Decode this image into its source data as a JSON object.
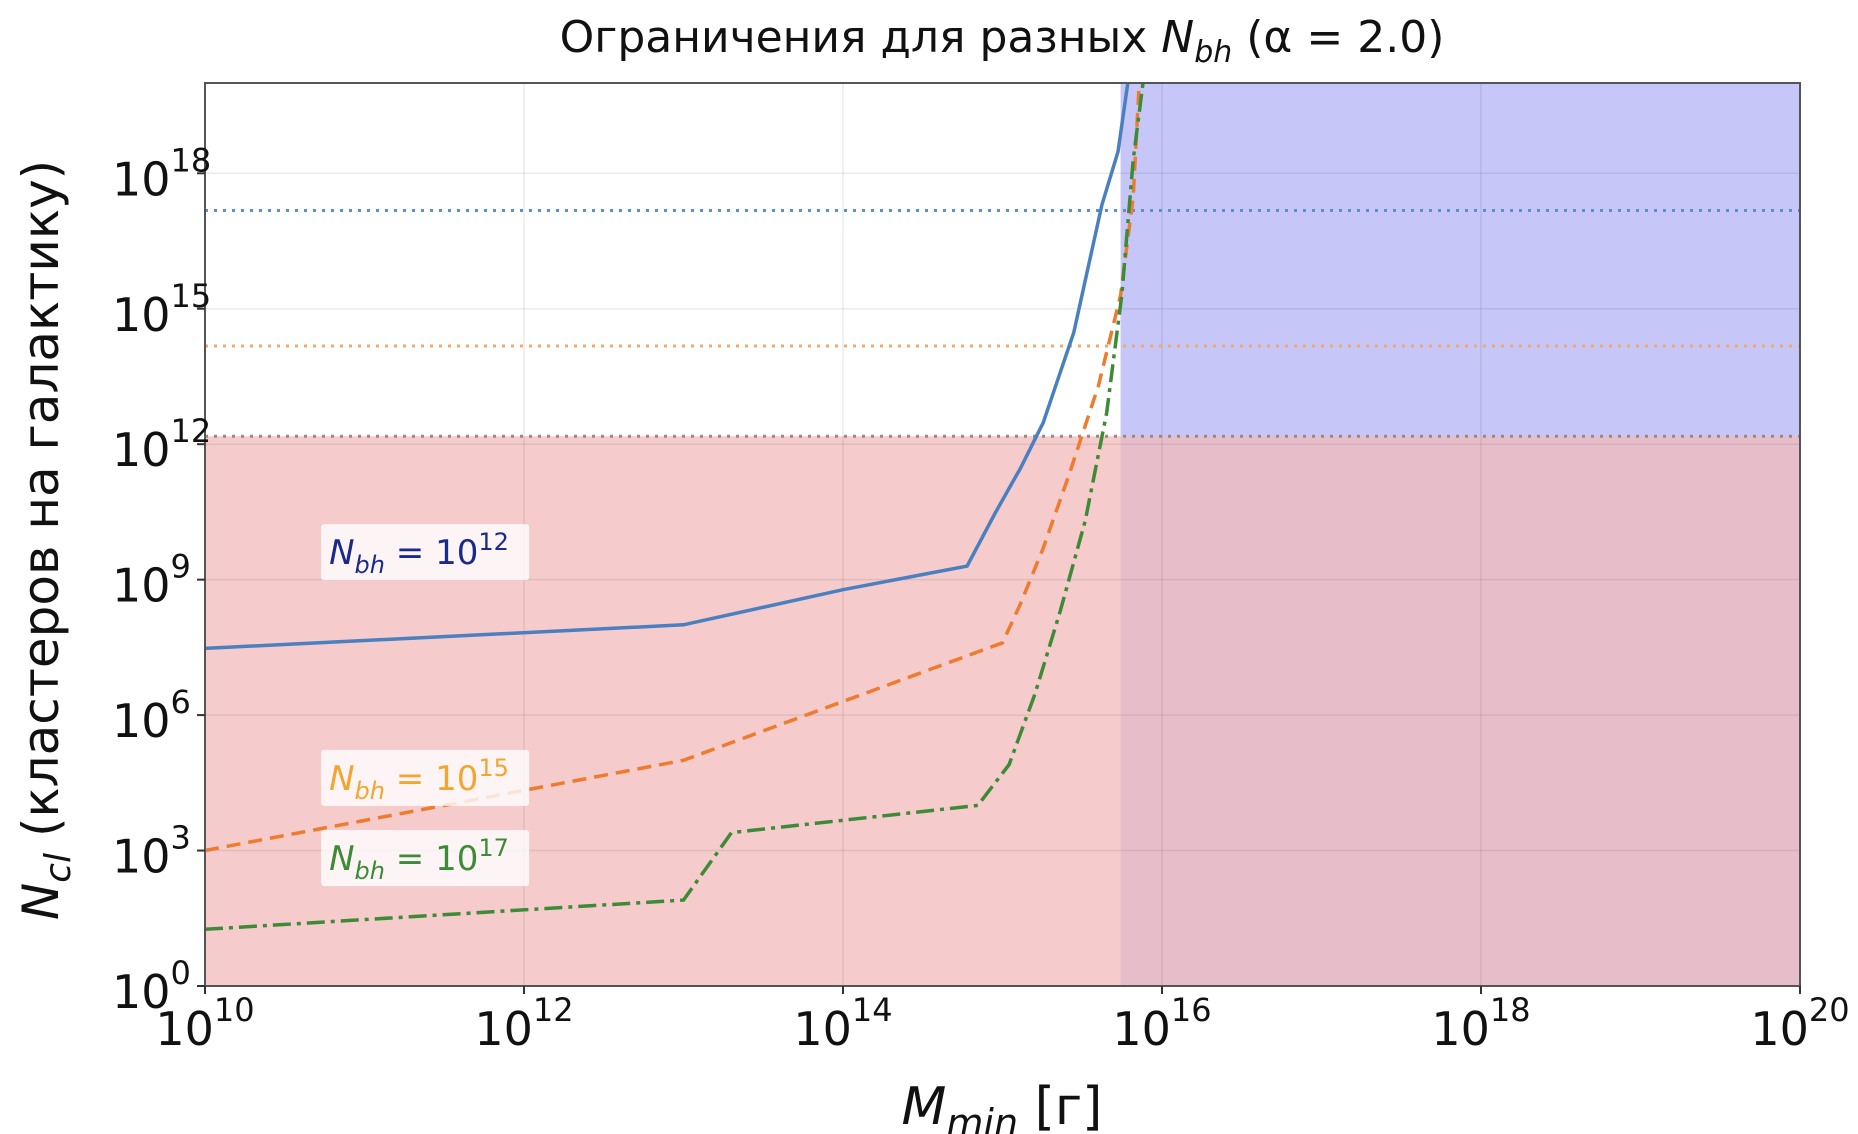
{
  "chart_data": {
    "type": "line",
    "title_main": "Ограничения для разных ",
    "title_sym": "N",
    "title_sub": "bh",
    "title_tail": " (α = 2.0)",
    "xlabel_sym": "M",
    "xlabel_sub": "min",
    "xlabel_unit": " [г]",
    "ylabel_sym": "N",
    "ylabel_sub": "cl",
    "ylabel_text": " (кластеров на галактику)",
    "x_scale": "log",
    "y_scale": "log",
    "xlim": [
      10000000000.0,
      1e+20
    ],
    "ylim": [
      1,
      1e+20
    ],
    "x_ticks": [
      {
        "exp": "10",
        "value": 10000000000.0
      },
      {
        "exp": "12",
        "value": 1000000000000.0
      },
      {
        "exp": "14",
        "value": 100000000000000.0
      },
      {
        "exp": "16",
        "value": 1e+16
      },
      {
        "exp": "18",
        "value": 1e+18
      },
      {
        "exp": "20",
        "value": 1e+20
      }
    ],
    "y_ticks": [
      {
        "exp": "0",
        "value": 1
      },
      {
        "exp": "3",
        "value": 1000.0
      },
      {
        "exp": "6",
        "value": 1000000.0
      },
      {
        "exp": "9",
        "value": 1000000000.0
      },
      {
        "exp": "12",
        "value": 1000000000000.0
      },
      {
        "exp": "15",
        "value": 1000000000000000.0
      },
      {
        "exp": "18",
        "value": 1e+18
      }
    ],
    "tick_base": "10",
    "grid": true,
    "regions": [
      {
        "name": "blue-excluded",
        "color": "#b3b3f5",
        "x_from": 5500000000000000.0,
        "x_to": 1e+20,
        "y_from": 1,
        "y_to": 1e+20
      },
      {
        "name": "red-excluded",
        "color": "#f2baba",
        "x_from": 10000000000.0,
        "x_to": 1e+20,
        "y_from": 1,
        "y_to": 1500000000000.0
      }
    ],
    "horizontal_lines": [
      {
        "name": "N_bh = 1e12",
        "y": 1500000000000.0,
        "color": "#9a8a7a"
      },
      {
        "name": "N_bh = 1e15",
        "y": 150000000000000.0,
        "color": "#f4a868"
      },
      {
        "name": "N_bh = 1e17",
        "y": 1.5e+17,
        "color": "#5b8fd0"
      }
    ],
    "series": [
      {
        "label_prefix": "N",
        "label_sub": "bh",
        "label_eq": " = 10",
        "label_exp": "12",
        "color": "#4a7fc0",
        "label_color": "#1a2a8c",
        "dash": "",
        "points": [
          [
            10000000000.0,
            30000000.0
          ],
          [
            10000000000000.0,
            100000000.0
          ],
          [
            100000000000000.0,
            600000000.0
          ],
          [
            600000000000000.0,
            2000000000.0
          ],
          [
            900000000000000.0,
            30000000000.0
          ],
          [
            1300000000000000.0,
            300000000000.0
          ],
          [
            1800000000000000.0,
            3000000000000.0
          ],
          [
            2800000000000000.0,
            300000000000000.0
          ],
          [
            4200000000000000.0,
            2e+17
          ],
          [
            5300000000000000.0,
            3e+18
          ],
          [
            6100000000000000.0,
            1e+20
          ]
        ]
      },
      {
        "label_prefix": "N",
        "label_sub": "bh",
        "label_eq": " = 10",
        "label_exp": "15",
        "color": "#ee7b2e",
        "label_color": "#f2a631",
        "dash": "14,8",
        "points": [
          [
            10000000000.0,
            1000.0
          ],
          [
            10000000000000.0,
            100000.0
          ],
          [
            100000000000000.0,
            2000000.0
          ],
          [
            1000000000000000.0,
            40000000.0
          ],
          [
            1300000000000000.0,
            300000000.0
          ],
          [
            1800000000000000.0,
            5000000000.0
          ],
          [
            2600000000000000.0,
            200000000000.0
          ],
          [
            4000000000000000.0,
            20000000000000.0
          ],
          [
            5500000000000000.0,
            2000000000000000.0
          ],
          [
            6600000000000000.0,
            3e+17
          ],
          [
            7200000000000000.0,
            1e+20
          ]
        ]
      },
      {
        "label_prefix": "N",
        "label_sub": "bh",
        "label_eq": " = 10",
        "label_exp": "17",
        "color": "#3d8b37",
        "label_color": "#3d8b37",
        "dash": "18,6,4,6",
        "points": [
          [
            10000000000.0,
            18
          ],
          [
            10000000000000.0,
            80
          ],
          [
            20000000000000.0,
            2500
          ],
          [
            700000000000000.0,
            10000.0
          ],
          [
            1100000000000000.0,
            80000.0
          ],
          [
            1600000000000000.0,
            3000000.0
          ],
          [
            2300000000000000.0,
            200000000.0
          ],
          [
            3300000000000000.0,
            20000000000.0
          ],
          [
            4500000000000000.0,
            5000000000000.0
          ],
          [
            5600000000000000.0,
            2000000000000000.0
          ],
          [
            6600000000000000.0,
            2e+18
          ],
          [
            7600000000000000.0,
            1e+20
          ]
        ]
      }
    ]
  }
}
